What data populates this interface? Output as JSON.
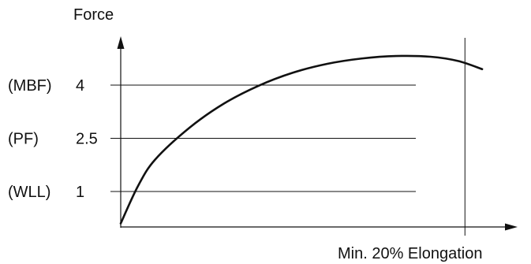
{
  "chart_data": {
    "type": "line",
    "ylabel": "Force",
    "xlabel": "Min. 20% Elongation",
    "y_ticks": [
      {
        "value": 4,
        "value_label": "4",
        "name_label": "(MBF)"
      },
      {
        "value": 2.5,
        "value_label": "2.5",
        "name_label": "(PF)"
      },
      {
        "value": 1,
        "value_label": "1",
        "name_label": "(WLL)"
      }
    ],
    "ylim": [
      0,
      5.2
    ],
    "xlim": [
      0,
      21.5
    ],
    "x_reference": 20,
    "grid": "horizontal lines at y ticks, vertical line at min. elongation",
    "series": [
      {
        "x": [
          0,
          1,
          2,
          4,
          6,
          8,
          10,
          12,
          14,
          16,
          18,
          19.6,
          21
        ],
        "y": [
          0.1,
          1.15,
          1.9,
          2.8,
          3.48,
          3.98,
          4.35,
          4.6,
          4.75,
          4.82,
          4.8,
          4.68,
          4.45
        ]
      }
    ],
    "colors": {
      "line": "#111111",
      "background": "#ffffff"
    }
  }
}
